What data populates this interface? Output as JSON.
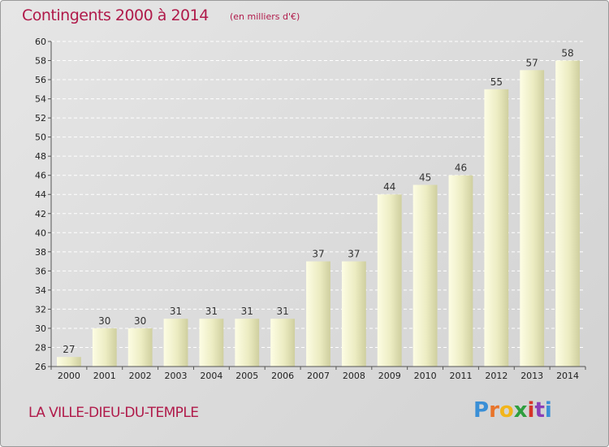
{
  "header": {
    "title": "Contingents 2000 à 2014",
    "unit": "(en milliers d'€)"
  },
  "footer": {
    "commune": "LA VILLE-DIEU-DU-TEMPLE",
    "logo_text": "Proxiti",
    "logo_colors": [
      "#3a8fd6",
      "#e8742a",
      "#f2b51a",
      "#2e9e3e",
      "#d6342a",
      "#8a3fb8",
      "#3a8fd6"
    ]
  },
  "colors": {
    "accent": "#b01a4a",
    "bar_light": "#fdfde0",
    "bar_dark": "#d4d4a8",
    "grid": "#ffffff",
    "axis": "#555555"
  },
  "chart_data": {
    "type": "bar",
    "title": "Contingents 2000 à 2014",
    "subtitle": "(en milliers d'€)",
    "xlabel": "",
    "ylabel": "",
    "categories": [
      "2000",
      "2001",
      "2002",
      "2003",
      "2004",
      "2005",
      "2006",
      "2007",
      "2008",
      "2009",
      "2010",
      "2011",
      "2012",
      "2013",
      "2014"
    ],
    "values": [
      27,
      30,
      30,
      31,
      31,
      31,
      31,
      37,
      37,
      44,
      45,
      46,
      55,
      57,
      58
    ],
    "ylim": [
      26,
      60
    ],
    "ytick_step": 2,
    "grid": true,
    "legend": "none"
  }
}
